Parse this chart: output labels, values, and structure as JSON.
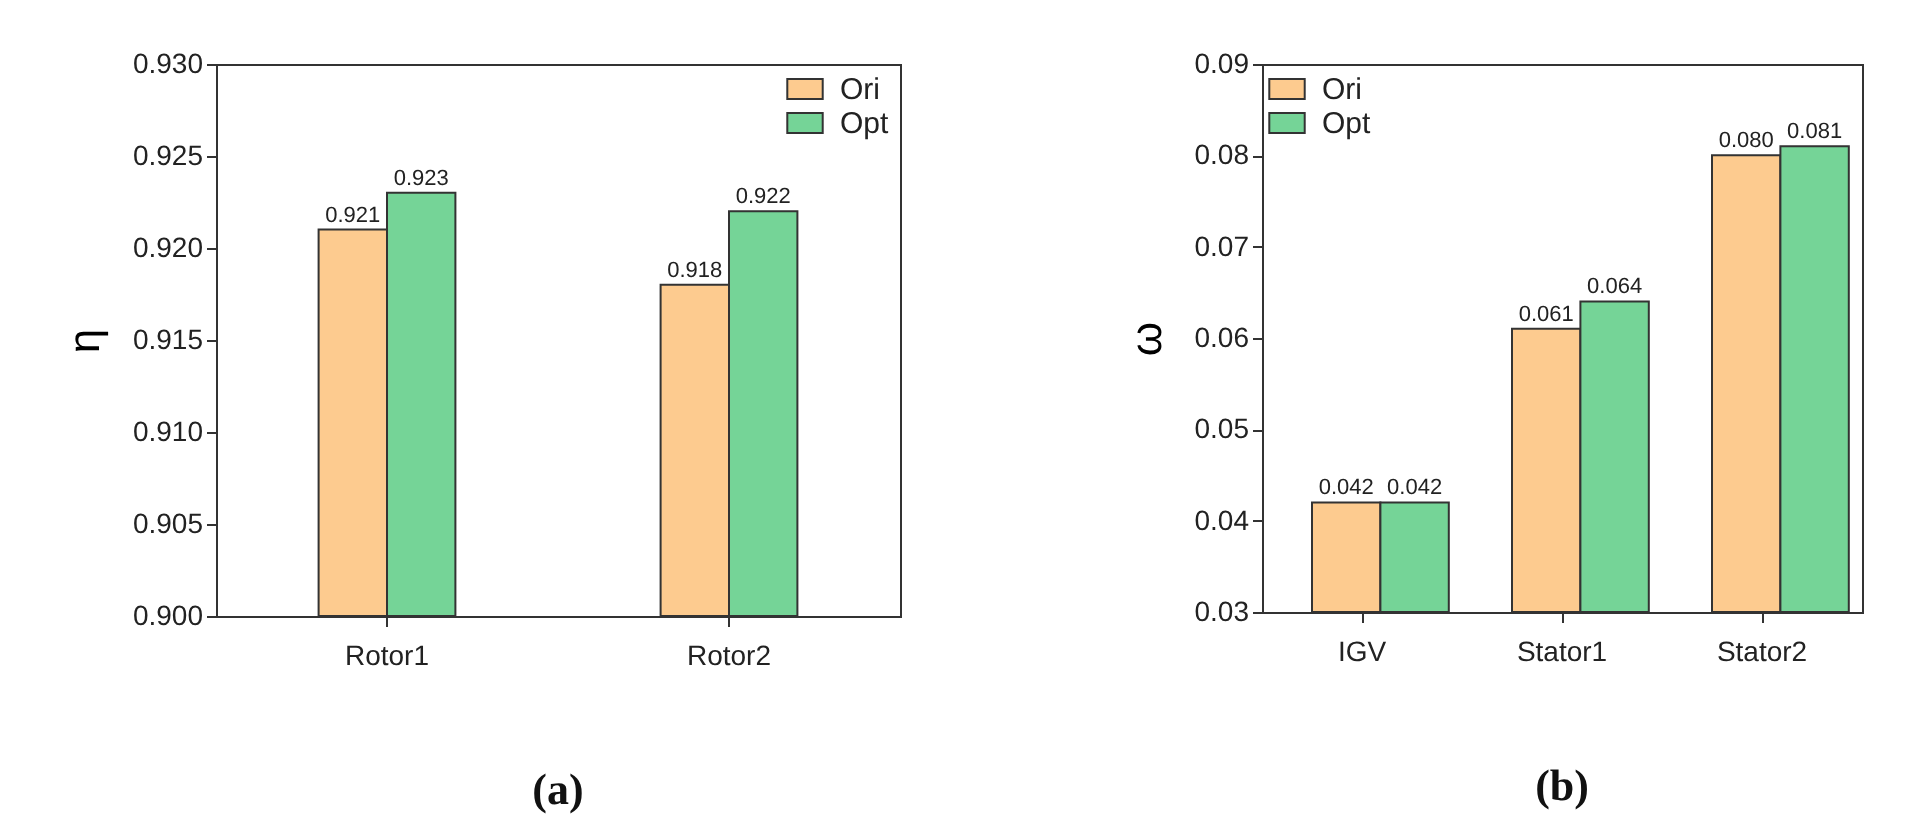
{
  "chart_data": [
    {
      "type": "bar",
      "title": "(a)",
      "ylabel": "η",
      "categories": [
        "Rotor1",
        "Rotor2"
      ],
      "legend": "top right",
      "data_labels": true,
      "ylim": [
        0.9,
        0.93
      ],
      "yticks": [
        {
          "value": 0.9,
          "label": "0.900"
        },
        0.905,
        {
          "value": 0.91,
          "label": "0.910"
        },
        0.915,
        {
          "value": 0.92,
          "label": "0.920"
        },
        0.925,
        {
          "value": 0.93,
          "label": "0.930"
        }
      ],
      "series": [
        {
          "name": "Ori",
          "color": "#fdcb8f",
          "values": [
            0.921,
            0.918
          ]
        },
        {
          "name": "Opt",
          "color": "#75d497",
          "values": [
            0.923,
            0.922
          ]
        }
      ]
    },
    {
      "type": "bar",
      "title": "(b)",
      "ylabel": "ω",
      "categories": [
        "IGV",
        "Stator1",
        "Stator2"
      ],
      "legend": "top left",
      "ylim": [
        0.03,
        0.09
      ],
      "yticks": [
        0.03,
        0.04,
        0.05,
        0.06,
        0.07,
        0.08,
        0.09
      ],
      "series": [
        {
          "name": "Ori",
          "color": "#fdcb8f",
          "values": [
            0.042,
            0.061,
            0.08
          ],
          "value_labels": [
            "0.042",
            "0.061",
            "0.080"
          ]
        },
        {
          "name": "Opt",
          "color": "#75d497",
          "values": [
            0.042,
            0.064,
            0.081
          ],
          "value_labels": [
            "0.042",
            "0.064",
            "0.081"
          ]
        }
      ]
    }
  ]
}
